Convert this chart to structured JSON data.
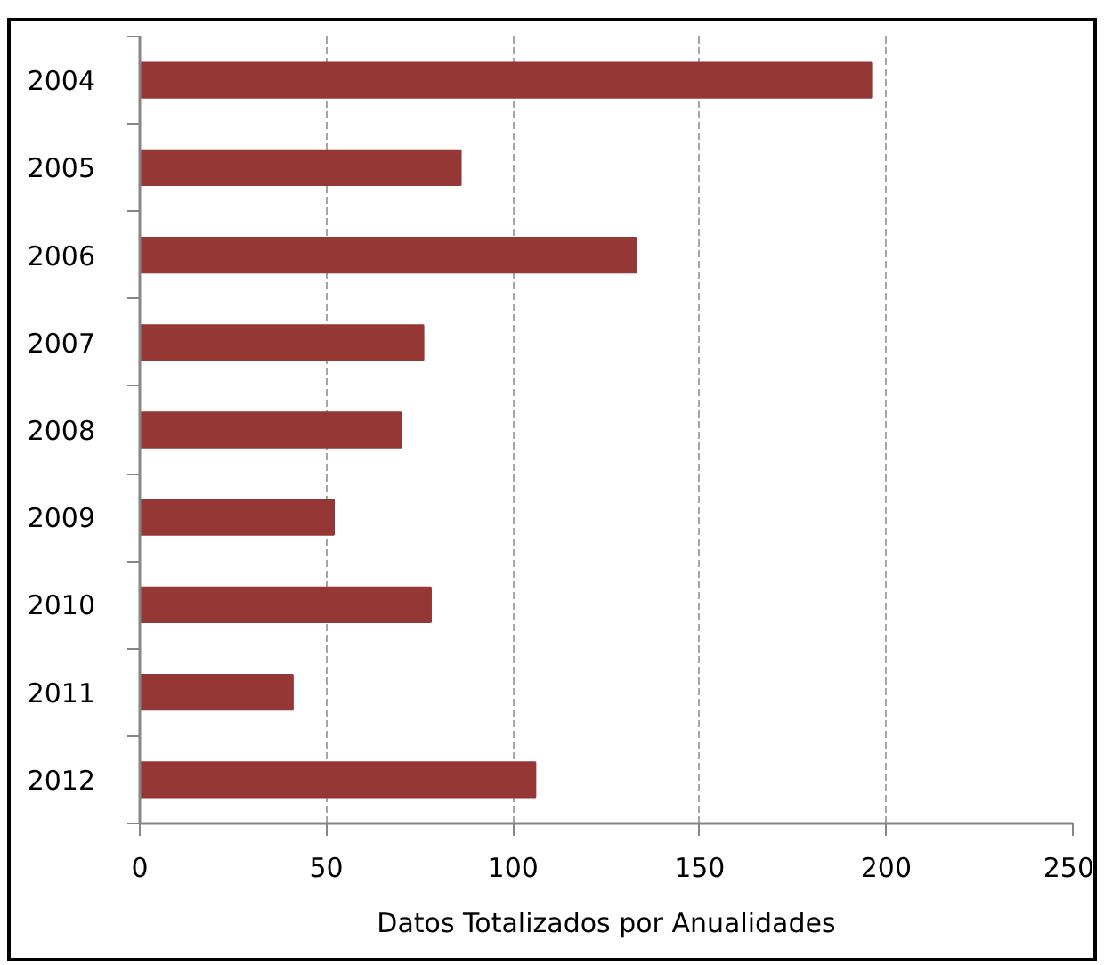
{
  "chart_data": {
    "type": "bar",
    "orientation": "horizontal",
    "xlabel": "Datos Totalizados por Anualidades",
    "categories": [
      "2004",
      "2005",
      "2006",
      "2007",
      "2008",
      "2009",
      "2010",
      "2011",
      "2012"
    ],
    "values": [
      196,
      86,
      133,
      76,
      70,
      52,
      78,
      41,
      106
    ],
    "color": "#953735",
    "xlim": [
      0,
      250
    ],
    "xticks": [
      0,
      50,
      100,
      150,
      200,
      250
    ],
    "grid": "x"
  }
}
